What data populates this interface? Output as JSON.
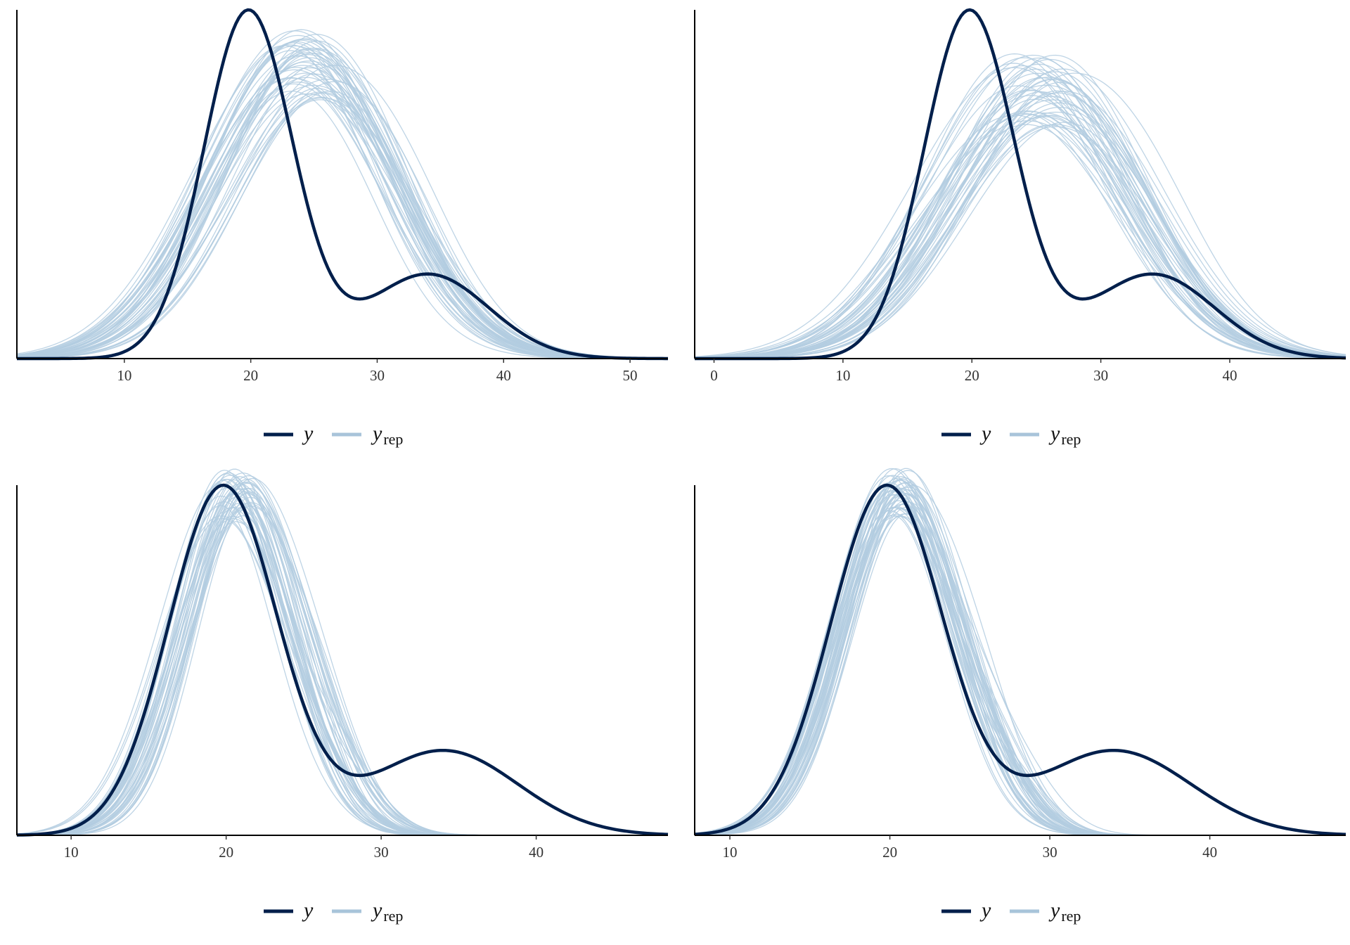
{
  "colors": {
    "y": "#011f4b",
    "yrep": "#b3cde0",
    "yrep_legend": "#a8c4da",
    "axis": "#000000"
  },
  "legend": {
    "y_label": "y",
    "yrep_label": "y",
    "yrep_subscript": "rep"
  },
  "chart_data": [
    {
      "type": "line",
      "panel": "top-left",
      "xlim": [
        1.5,
        53
      ],
      "xticks": [
        10,
        20,
        30,
        40,
        50
      ],
      "y_scale_max": 0.0655,
      "y_obs": {
        "mean": 20.0,
        "sd": 4.5,
        "peak": 0.0655,
        "shape": [
          [
            19.8,
            3.5,
            0.75
          ],
          [
            34.0,
            4.8,
            0.25
          ]
        ]
      },
      "y_rep": {
        "count": 50,
        "center_low": 22.2,
        "center_high": 25.8,
        "sd_low": 6.3,
        "sd_high": 7.4,
        "peak_low": 0.0485,
        "peak_high": 0.0625
      },
      "legend_position": "bottom"
    },
    {
      "type": "line",
      "panel": "top-right",
      "xlim": [
        -1.5,
        49
      ],
      "xticks": [
        0,
        10,
        20,
        30,
        40
      ],
      "y_scale_max": 0.0655,
      "y_obs": {
        "mean": 20.0,
        "sd": 4.5,
        "peak": 0.0655,
        "shape": [
          [
            19.8,
            3.5,
            0.75
          ],
          [
            34.0,
            4.8,
            0.25
          ]
        ]
      },
      "y_rep": {
        "count": 50,
        "center_low": 23.0,
        "center_high": 27.0,
        "sd_low": 6.6,
        "sd_high": 7.8,
        "peak_low": 0.0435,
        "peak_high": 0.0575
      },
      "legend_position": "bottom"
    },
    {
      "type": "line",
      "panel": "bottom-left",
      "xlim": [
        6.5,
        48.5
      ],
      "xticks": [
        10,
        20,
        30,
        40
      ],
      "y_scale_max": 0.0655,
      "y_obs": {
        "mean": 20.0,
        "sd": 4.5,
        "peak": 0.0655,
        "shape": [
          [
            19.8,
            3.5,
            0.75
          ],
          [
            34.0,
            4.8,
            0.25
          ]
        ]
      },
      "y_rep": {
        "count": 50,
        "center_low": 19.6,
        "center_high": 21.6,
        "sd_low": 3.2,
        "sd_high": 4.0,
        "peak_low": 0.0585,
        "peak_high": 0.0685
      },
      "legend_position": "bottom"
    },
    {
      "type": "line",
      "panel": "bottom-right",
      "xlim": [
        7.8,
        48.5
      ],
      "xticks": [
        10,
        20,
        30,
        40
      ],
      "y_scale_max": 0.0655,
      "y_obs": {
        "mean": 20.0,
        "sd": 4.5,
        "peak": 0.0655,
        "shape": [
          [
            19.8,
            3.5,
            0.75
          ],
          [
            34.0,
            4.8,
            0.25
          ]
        ]
      },
      "y_rep": {
        "count": 50,
        "center_low": 19.9,
        "center_high": 21.2,
        "sd_low": 3.3,
        "sd_high": 3.9,
        "peak_low": 0.0595,
        "peak_high": 0.069
      },
      "legend_position": "bottom"
    }
  ]
}
